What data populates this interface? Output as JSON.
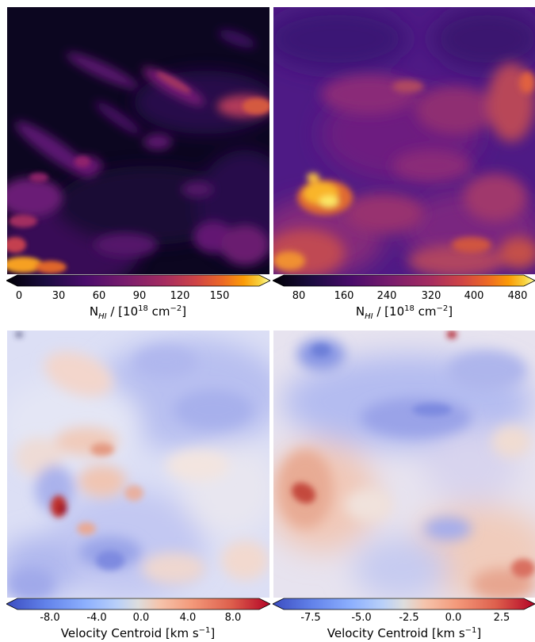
{
  "panels": [
    {
      "id": "nhi-left",
      "colormap": "inferno",
      "colorbar": {
        "ticks": [
          "0",
          "30",
          "60",
          "90",
          "120",
          "150"
        ],
        "label_prefix": "N",
        "label_sub": "HI",
        "label_mid": " / [10",
        "label_sup1": "18",
        "label_mid2": " cm",
        "label_sup2": "−2",
        "label_end": "]"
      }
    },
    {
      "id": "nhi-right",
      "colormap": "inferno",
      "colorbar": {
        "ticks": [
          "80",
          "160",
          "240",
          "320",
          "400",
          "480"
        ],
        "label_prefix": "N",
        "label_sub": "HI",
        "label_mid": " / [10",
        "label_sup1": "18",
        "label_mid2": " cm",
        "label_sup2": "−2",
        "label_end": "]"
      }
    },
    {
      "id": "vc-left",
      "colormap": "coolwarm",
      "colorbar": {
        "ticks": [
          "-8.0",
          "-4.0",
          "0.0",
          "4.0",
          "8.0"
        ],
        "label_text": "Velocity Centroid [km s",
        "label_sup": "−1",
        "label_end": "]"
      }
    },
    {
      "id": "vc-right",
      "colormap": "coolwarm",
      "colorbar": {
        "ticks": [
          "-7.5",
          "-5.0",
          "-2.5",
          "0.0",
          "2.5"
        ],
        "label_text": "Velocity Centroid [km s",
        "label_sup": "−1",
        "label_end": "]"
      }
    }
  ]
}
